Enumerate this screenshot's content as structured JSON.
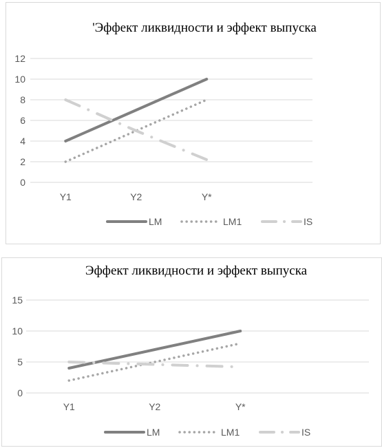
{
  "chart_data": [
    {
      "type": "line",
      "title": "'Эффект ликвидности и эффект выпуска",
      "categories": [
        "Y1",
        "Y2",
        "Y*"
      ],
      "ylim": [
        0,
        12
      ],
      "yticks": [
        0,
        2,
        4,
        6,
        8,
        10,
        12
      ],
      "grid": true,
      "legend_position": "bottom",
      "series": [
        {
          "name": "LM",
          "values": [
            4,
            7,
            10
          ],
          "color": "#808080",
          "style": "solid"
        },
        {
          "name": "LM1",
          "values": [
            2,
            5,
            8
          ],
          "color": "#a6a6a6",
          "style": "dotted"
        },
        {
          "name": "IS",
          "values": [
            8,
            5,
            2.2
          ],
          "color": "#d0d0d0",
          "style": "dash-dot"
        }
      ]
    },
    {
      "type": "line",
      "title": "Эффект ликвидности и эффект выпуска",
      "categories": [
        "Y1",
        "Y2",
        "Y*"
      ],
      "ylim": [
        0,
        15
      ],
      "yticks": [
        0,
        5,
        10,
        15
      ],
      "grid": true,
      "legend_position": "bottom",
      "series": [
        {
          "name": "LM",
          "values": [
            4,
            7,
            10
          ],
          "color": "#808080",
          "style": "solid"
        },
        {
          "name": "LM1",
          "values": [
            2,
            5,
            8
          ],
          "color": "#a6a6a6",
          "style": "dotted"
        },
        {
          "name": "IS",
          "values": [
            5,
            4.6,
            4.2
          ],
          "color": "#d0d0d0",
          "style": "dash-dot"
        }
      ]
    }
  ]
}
